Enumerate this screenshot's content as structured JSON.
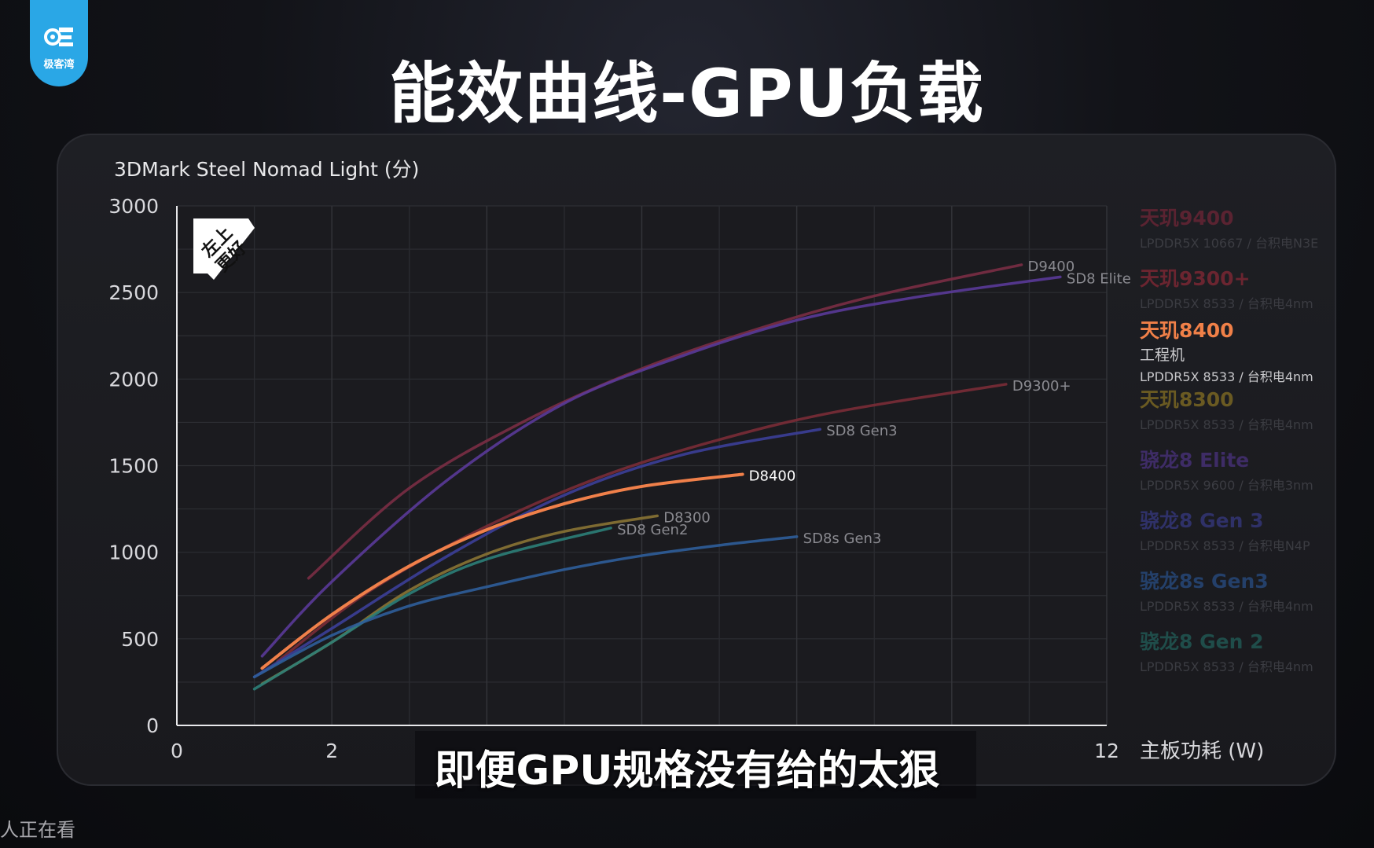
{
  "logo": {
    "text": "极客湾"
  },
  "main_title": "能效曲线-GPU负载",
  "subtitle": "即便GPU规格没有给的太狠",
  "viewers_text": "人正在看",
  "badge": {
    "line1": "左上",
    "line2": "更好"
  },
  "legend": [
    {
      "name": "天玑9400",
      "sub": "LPDDR5X 10667 / 台积电N3E",
      "color": "#5a2331"
    },
    {
      "name": "天玑9300+",
      "sub": "LPDDR5X 8533 / 台积电4nm",
      "color": "#6b2530"
    },
    {
      "name": "天玑8400",
      "note": "工程机",
      "sub": "LPDDR5X 8533 / 台积电4nm",
      "color": "#f08048",
      "sub_color": "#c9c9cc"
    },
    {
      "name": "天玑8300",
      "sub": "LPDDR5X 8533 / 台积电4nm",
      "color": "#6a5a22"
    },
    {
      "name": "骁龙8 Elite",
      "sub": "LPDDR5X 9600 / 台积电3nm",
      "color": "#3e2c66"
    },
    {
      "name": "骁龙8 Gen 3",
      "sub": "LPDDR5X 8533 / 台积电N4P",
      "color": "#2f3168"
    },
    {
      "name": "骁龙8s Gen3",
      "sub": "LPDDR5X 8533 / 台积电4nm",
      "color": "#24406a"
    },
    {
      "name": "骁龙8 Gen 2",
      "sub": "LPDDR5X 8533 / 台积电4nm",
      "color": "#1f4d4a"
    }
  ],
  "chart_data": {
    "type": "line",
    "title": "3DMark Steel Nomad Light (分)",
    "xlabel": "主板功耗 (W)",
    "ylabel": "",
    "xlim": [
      0,
      12
    ],
    "ylim": [
      0,
      3000
    ],
    "x_ticks": [
      0,
      2,
      12
    ],
    "y_ticks": [
      0,
      500,
      1000,
      1500,
      2000,
      2500,
      3000
    ],
    "grid": true,
    "series": [
      {
        "name": "D9400",
        "color": "#7a2e44",
        "label_color": "#8a8a90",
        "x": [
          1.7,
          3.0,
          4.5,
          6.0,
          7.5,
          9.0,
          10.9
        ],
        "y": [
          850,
          1370,
          1760,
          2060,
          2290,
          2480,
          2660
        ]
      },
      {
        "name": "SD8 Elite",
        "color": "#5a3a98",
        "label_color": "#8a8a90",
        "x": [
          1.1,
          2.0,
          3.5,
          5.0,
          6.5,
          8.0,
          9.5,
          11.4
        ],
        "y": [
          400,
          830,
          1420,
          1860,
          2130,
          2340,
          2470,
          2590
        ]
      },
      {
        "name": "D9300+",
        "color": "#7a2c36",
        "label_color": "#8a8a90",
        "x": [
          1.3,
          2.5,
          4.0,
          5.5,
          7.0,
          8.5,
          10.7
        ],
        "y": [
          370,
          780,
          1150,
          1440,
          1650,
          1810,
          1970
        ]
      },
      {
        "name": "SD8 Gen3",
        "color": "#3c3f98",
        "label_color": "#8a8a90",
        "x": [
          1.0,
          2.0,
          3.5,
          5.0,
          6.5,
          8.3
        ],
        "y": [
          280,
          560,
          980,
          1330,
          1560,
          1710
        ]
      },
      {
        "name": "D8400",
        "color": "#f0804a",
        "label_color": "#ffffff",
        "x": [
          1.1,
          2.0,
          3.0,
          4.0,
          5.0,
          6.0,
          7.3
        ],
        "y": [
          330,
          640,
          920,
          1130,
          1280,
          1380,
          1450
        ]
      },
      {
        "name": "D8300",
        "color": "#8a7434",
        "label_color": "#8a8a90",
        "x": [
          1.1,
          2.0,
          3.0,
          4.0,
          5.0,
          6.2
        ],
        "y": [
          240,
          480,
          780,
          990,
          1120,
          1210
        ]
      },
      {
        "name": "SD8 Gen2",
        "color": "#2c8078",
        "label_color": "#8a8a90",
        "x": [
          1.0,
          2.0,
          3.0,
          4.0,
          5.6
        ],
        "y": [
          210,
          480,
          760,
          960,
          1140
        ]
      },
      {
        "name": "SD8s Gen3",
        "color": "#2f5e9a",
        "label_color": "#8a8a90",
        "x": [
          1.0,
          2.0,
          3.0,
          4.0,
          5.0,
          6.0,
          7.0,
          8.0
        ],
        "y": [
          280,
          520,
          690,
          800,
          900,
          980,
          1040,
          1090
        ]
      }
    ]
  }
}
